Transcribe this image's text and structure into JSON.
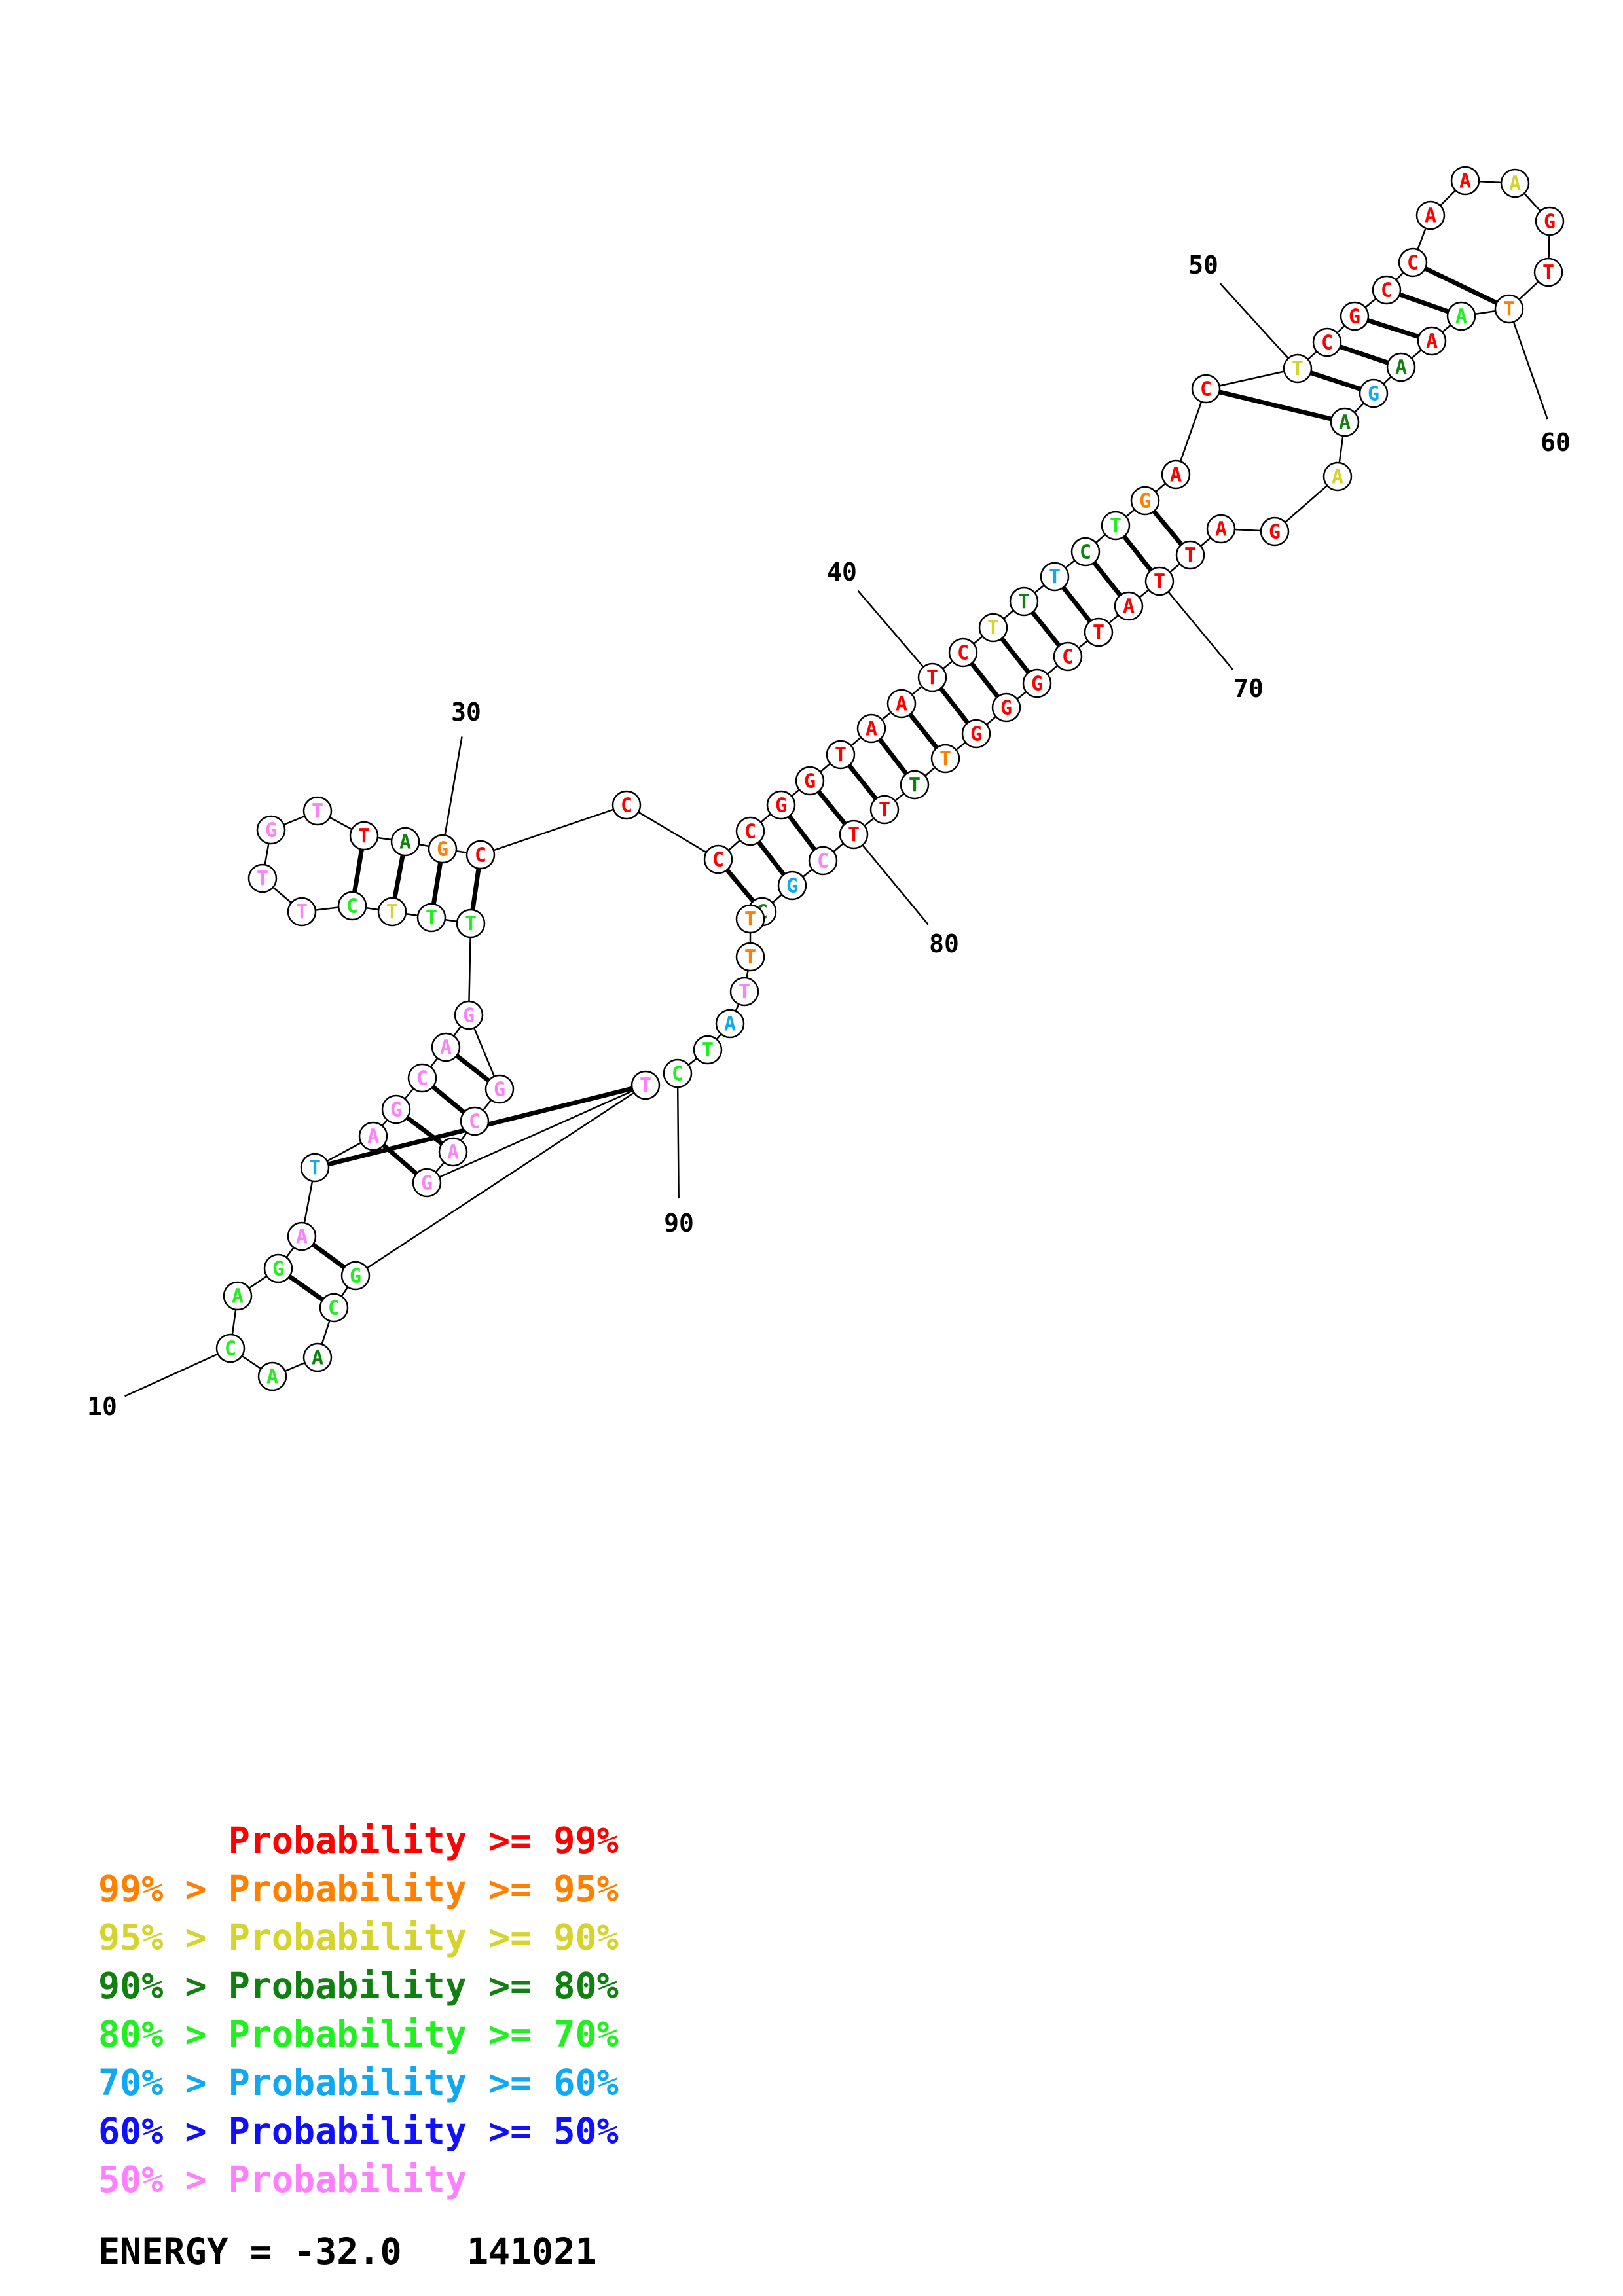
{
  "colors": {
    "r": "#ff0000",
    "o": "#ff8000",
    "y": "#d4d42c",
    "d": "#108010",
    "g": "#20f020",
    "c": "#10a8f0",
    "b": "#1010ff",
    "p": "#ff80ff"
  },
  "nucleotides": [
    {
      "l": "C",
      "c": "g"
    },
    {
      "l": "A",
      "c": "g"
    },
    {
      "l": "A",
      "c": "d"
    },
    {
      "l": "C",
      "c": "g"
    },
    {
      "l": "G",
      "c": "g"
    },
    {
      "l": "A",
      "c": "p"
    },
    {
      "l": "G",
      "c": "g"
    },
    {
      "l": "A",
      "c": "g"
    },
    {
      "l": "T",
      "c": "c"
    },
    {
      "l": "A",
      "c": "p"
    },
    {
      "l": "G",
      "c": "p"
    },
    {
      "l": "C",
      "c": "p"
    },
    {
      "l": "A",
      "c": "p"
    },
    {
      "l": "G",
      "c": "p"
    },
    {
      "l": "T",
      "c": "g"
    },
    {
      "l": "T",
      "c": "g"
    },
    {
      "l": "T",
      "c": "y"
    },
    {
      "l": "C",
      "c": "g"
    },
    {
      "l": "T",
      "c": "p"
    },
    {
      "l": "T",
      "c": "p"
    },
    {
      "l": "G",
      "c": "p"
    },
    {
      "l": "T",
      "c": "p"
    },
    {
      "l": "T",
      "c": "r"
    },
    {
      "l": "A",
      "c": "d"
    },
    {
      "l": "G",
      "c": "o"
    },
    {
      "l": "C",
      "c": "r"
    },
    {
      "l": "C",
      "c": "r"
    },
    {
      "l": "C",
      "c": "r"
    },
    {
      "l": "C",
      "c": "r"
    },
    {
      "l": "G",
      "c": "r"
    },
    {
      "l": "G",
      "c": "r"
    },
    {
      "l": "T",
      "c": "r"
    },
    {
      "l": "A",
      "c": "r"
    },
    {
      "l": "A",
      "c": "r"
    },
    {
      "l": "T",
      "c": "r"
    },
    {
      "l": "C",
      "c": "r"
    },
    {
      "l": "T",
      "c": "y"
    },
    {
      "l": "T",
      "c": "d"
    },
    {
      "l": "T",
      "c": "c"
    },
    {
      "l": "C",
      "c": "d"
    },
    {
      "l": "T",
      "c": "g"
    },
    {
      "l": "G",
      "c": "o"
    },
    {
      "l": "A",
      "c": "r"
    },
    {
      "l": "C",
      "c": "r"
    },
    {
      "l": "T",
      "c": "y"
    },
    {
      "l": "C",
      "c": "r"
    },
    {
      "l": "G",
      "c": "r"
    },
    {
      "l": "C",
      "c": "r"
    },
    {
      "l": "C",
      "c": "r"
    },
    {
      "l": "A",
      "c": "r"
    },
    {
      "l": "A",
      "c": "r"
    },
    {
      "l": "A",
      "c": "y"
    },
    {
      "l": "G",
      "c": "r"
    },
    {
      "l": "T",
      "c": "r"
    },
    {
      "l": "T",
      "c": "o"
    },
    {
      "l": "A",
      "c": "g"
    },
    {
      "l": "A",
      "c": "r"
    },
    {
      "l": "A",
      "c": "d"
    },
    {
      "l": "G",
      "c": "c"
    },
    {
      "l": "A",
      "c": "d"
    },
    {
      "l": "A",
      "c": "y"
    },
    {
      "l": "G",
      "c": "r"
    },
    {
      "l": "A",
      "c": "r"
    },
    {
      "l": "T",
      "c": "r"
    },
    {
      "l": "T",
      "c": "r"
    },
    {
      "l": "A",
      "c": "r"
    },
    {
      "l": "T",
      "c": "r"
    },
    {
      "l": "C",
      "c": "r"
    },
    {
      "l": "G",
      "c": "r"
    },
    {
      "l": "G",
      "c": "r"
    },
    {
      "l": "G",
      "c": "r"
    },
    {
      "l": "T",
      "c": "o"
    },
    {
      "l": "T",
      "c": "d"
    },
    {
      "l": "T",
      "c": "r"
    },
    {
      "l": "T",
      "c": "r"
    },
    {
      "l": "C",
      "c": "p"
    },
    {
      "l": "G",
      "c": "c"
    },
    {
      "l": "C",
      "c": "d"
    },
    {
      "l": "T",
      "c": "o"
    },
    {
      "l": "T",
      "c": "o"
    },
    {
      "l": "T",
      "c": "p"
    },
    {
      "l": "A",
      "c": "c"
    },
    {
      "l": "T",
      "c": "g"
    },
    {
      "l": "C",
      "c": "g"
    },
    {
      "l": "T",
      "c": "p"
    },
    {
      "l": "G",
      "c": "p"
    },
    {
      "l": "A",
      "c": "p"
    },
    {
      "l": "C",
      "c": "p"
    },
    {
      "l": "G",
      "c": "p"
    }
  ],
  "pairs": [
    [
      4,
      35
    ],
    [
      3,
      34
    ],
    [
      5,
      33
    ],
    [
      7,
      32
    ],
    [
      8,
      31
    ],
    [
      53,
      75
    ],
    [
      54,
      74
    ],
    [
      55,
      73
    ],
    [
      56,
      72
    ],
    [
      57,
      71
    ],
    [
      58,
      70
    ],
    [
      59,
      69
    ],
    [
      60,
      68
    ],
    [
      61,
      67
    ],
    [
      62,
      66
    ],
    [
      63,
      65
    ],
    [
      64,
      64
    ],
    [
      88,
      85
    ],
    [
      87,
      84
    ],
    [
      86,
      83
    ],
    [
      85,
      82
    ]
  ],
  "number_labels": [
    "10",
    "30",
    "40",
    "50",
    "60",
    "70",
    "80",
    "90"
  ],
  "legend": [
    {
      "prefix": "",
      "label": "Probability >= 99%",
      "color": "r"
    },
    {
      "prefix": "99% > ",
      "label": "Probability >= 95%",
      "color": "o"
    },
    {
      "prefix": "95% > ",
      "label": "Probability >= 90%",
      "color": "y"
    },
    {
      "prefix": "90% > ",
      "label": "Probability >= 80%",
      "color": "d"
    },
    {
      "prefix": "80% > ",
      "label": "Probability >= 70%",
      "color": "g"
    },
    {
      "prefix": "70% > ",
      "label": "Probability >= 60%",
      "color": "c"
    },
    {
      "prefix": "60% > ",
      "label": "Probability >= 50%",
      "color": "b"
    },
    {
      "prefix": "50% > ",
      "label": "Probability",
      "color": "p"
    }
  ],
  "footer": {
    "energy_text": "ENERGY = -32.0",
    "id_text": "141021"
  }
}
